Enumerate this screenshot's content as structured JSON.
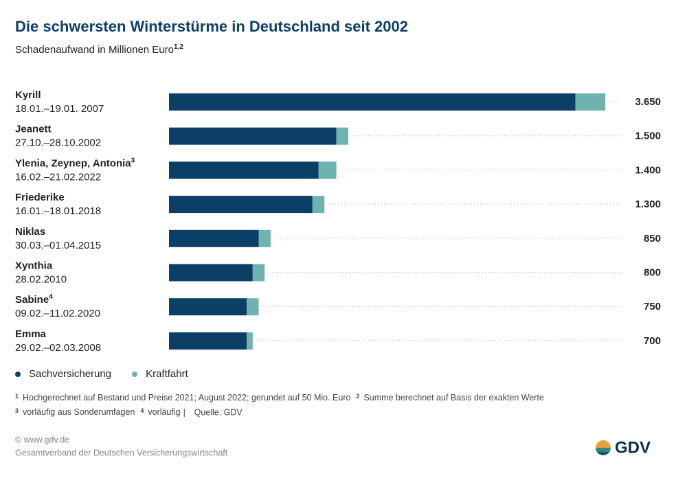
{
  "chart_data": {
    "type": "stacked-barh",
    "title": "Die schwersten Winterstürme in Deutschland seit 2002",
    "subtitle": "Schadenaufwand in Millionen Euro",
    "subtitle_note": "1,2",
    "categories": [
      "Kyrill",
      "Jeanett",
      "Ylenia, Zeynep, Antonia",
      "Friederike",
      "Niklas",
      "Xynthia",
      "Sabine",
      "Emma"
    ],
    "category_notes": [
      null,
      null,
      "3",
      null,
      null,
      null,
      "4",
      null
    ],
    "dates": [
      "18.01.–19.01. 2007",
      "27.10.–28.10.2002",
      "16.02.–21.02.2022",
      "16.01.–18.01.2018",
      "30.03.–01.04.2015",
      "28.02.2010",
      "09.02.–11.02.2020",
      "29.02.–02.03.2008"
    ],
    "series": [
      {
        "name": "Sachversicherung",
        "color": "#0b3f66",
        "values": [
          3400,
          1400,
          1250,
          1200,
          750,
          700,
          650,
          650
        ]
      },
      {
        "name": "Kraftfahrt",
        "color": "#6fb3ae",
        "values": [
          250,
          100,
          150,
          100,
          100,
          100,
          100,
          50
        ]
      }
    ],
    "totals": [
      {
        "value": 3650,
        "label": "3.650"
      },
      {
        "value": 1500,
        "label": "1.500"
      },
      {
        "value": 1400,
        "label": "1.400"
      },
      {
        "value": 1300,
        "label": "1.300"
      },
      850,
      800,
      750,
      700
    ],
    "xlim": [
      0,
      4000
    ],
    "footnotes": [
      {
        "mark": "1",
        "text": "Hochgerechnet auf Bestand und Preise 2021; August 2022; gerundet auf 50 Mio. Euro"
      },
      {
        "mark": "2",
        "text": "Summe berechnet auf Basis der exakten Werte"
      },
      {
        "mark": "3",
        "text": "vorläufig aus Sonderumfagen"
      },
      {
        "mark": "4",
        "text": "vorläufig"
      }
    ],
    "separator": "|",
    "source": "Quelle: GDV",
    "footer": [
      "© www.gdv.de",
      "Gesamtverband der Deutschen Versicherungswirtschaft"
    ],
    "logo": "GDV"
  }
}
